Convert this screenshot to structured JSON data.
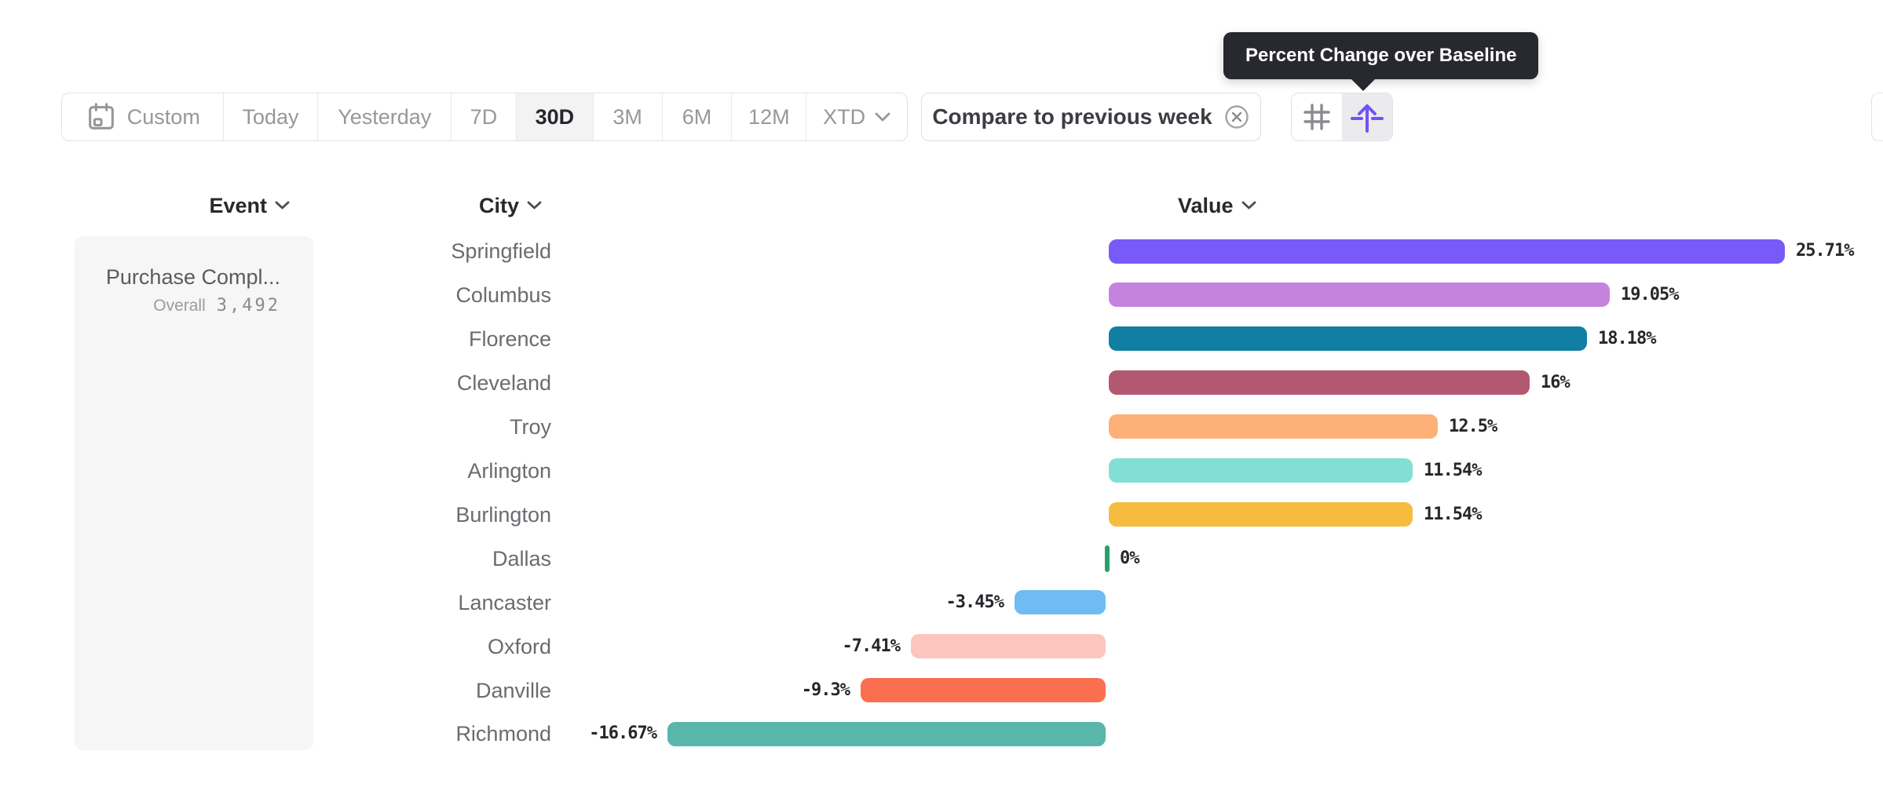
{
  "toolbar": {
    "date_ranges": [
      {
        "label": "Custom",
        "icon": "calendar-icon",
        "selected": false
      },
      {
        "label": "Today",
        "selected": false
      },
      {
        "label": "Yesterday",
        "selected": false
      },
      {
        "label": "7D",
        "selected": false
      },
      {
        "label": "30D",
        "selected": true
      },
      {
        "label": "3M",
        "selected": false
      },
      {
        "label": "6M",
        "selected": false
      },
      {
        "label": "12M",
        "selected": false
      },
      {
        "label": "XTD",
        "has_chevron": true,
        "selected": false
      }
    ],
    "compare_button": {
      "label": "Compare to previous week",
      "icon": "circled-x-icon"
    },
    "view_toggles": [
      {
        "icon": "grid-hash-icon",
        "selected": false
      },
      {
        "icon": "baseline-arrow-icon",
        "selected": true,
        "accent_color": "#7352F5"
      }
    ]
  },
  "tooltip": {
    "text": "Percent Change over Baseline"
  },
  "columns": {
    "event": "Event",
    "city": "City",
    "value": "Value"
  },
  "event_panel": {
    "event_name": "Purchase Compl...",
    "overall_label": "Overall",
    "overall_value": "3,492"
  },
  "chart_data": {
    "type": "bar",
    "orientation": "horizontal",
    "title": "Percent Change over Baseline",
    "unit": "percent",
    "xlim": [
      -16.67,
      25.71
    ],
    "grid": false,
    "categories": [
      "Springfield",
      "Columbus",
      "Florence",
      "Cleveland",
      "Troy",
      "Arlington",
      "Burlington",
      "Dallas",
      "Lancaster",
      "Oxford",
      "Danville",
      "Richmond"
    ],
    "values": [
      25.71,
      19.05,
      18.18,
      16,
      12.5,
      11.54,
      11.54,
      0,
      -3.45,
      -7.41,
      -9.3,
      -16.67
    ],
    "labels": [
      "25.71%",
      "19.05%",
      "18.18%",
      "16%",
      "12.5%",
      "11.54%",
      "11.54%",
      "0%",
      "-3.45%",
      "-7.41%",
      "-9.3%",
      "-16.67%"
    ],
    "colors": [
      "#785AF8",
      "#C583DE",
      "#107FA3",
      "#B25871",
      "#FDB178",
      "#82DFD5",
      "#F5BC40",
      "#2AA266",
      "#6FBCF3",
      "#FCC5BD",
      "#FA6F50",
      "#58B6AA"
    ],
    "zero_tick_color": "#2AA266"
  }
}
